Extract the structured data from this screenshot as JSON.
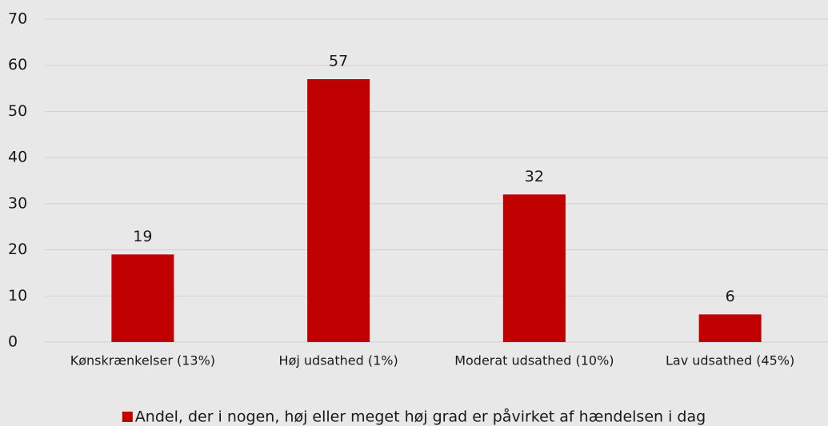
{
  "chart_data": {
    "type": "bar",
    "categories": [
      "Kønskrænkelser (13%)",
      "Høj udsathed (1%)",
      "Moderat udsathed (10%)",
      "Lav udsathed (45%)"
    ],
    "series": [
      {
        "name": "Andel, der i nogen, høj eller meget høj grad er påvirket af hændelsen i dag",
        "color": "#c00000",
        "values": [
          19,
          57,
          32,
          6
        ]
      }
    ],
    "ylim": [
      0,
      70
    ],
    "yticks": [
      0,
      10,
      20,
      30,
      40,
      50,
      60,
      70
    ],
    "grid": true,
    "legend": "bottom"
  }
}
